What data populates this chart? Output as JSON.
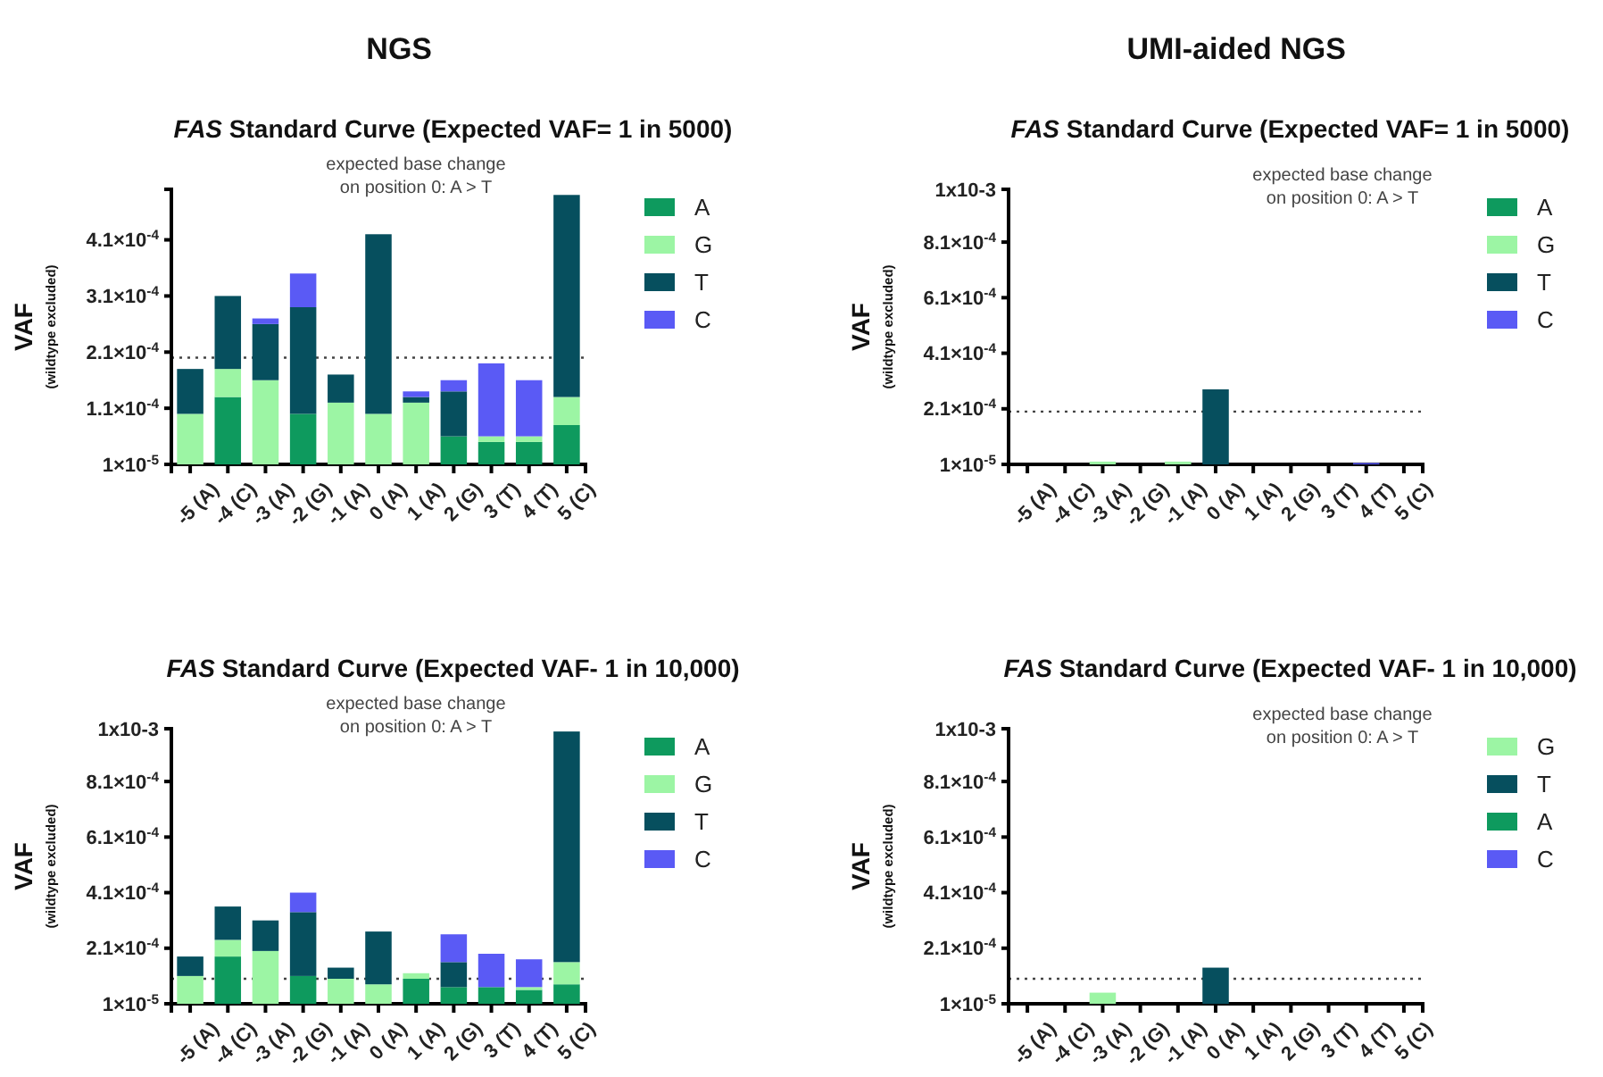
{
  "chart_data": [
    {
      "type": "bar",
      "stacked": true,
      "title": "FAS Standard Curve (Expected VAF= 1 in 5000)",
      "ylabel": "VAF\n(wildtype excluded)",
      "annotations": [
        "NGS",
        "expected base change\non position 0: A > T"
      ],
      "legend": "right",
      "categories": [
        "-5 (A)",
        "-4 (C)",
        "-3 (A)",
        "-2 (G)",
        "-1 (A)",
        "0 (A)",
        "1 (A)",
        "2 (G)",
        "3 (T)",
        "4 (T)",
        "5 (C)"
      ],
      "ylim": [
        1e-05,
        0.0005
      ],
      "yticks": [
        {
          "value": 1e-05,
          "label": "1×10$^{-5}$"
        },
        {
          "value": 0.00011,
          "label": "1.1×10$^{-4}$"
        },
        {
          "value": 0.00021,
          "label": "2.1×10$^{-4}$"
        },
        {
          "value": 0.00031,
          "label": "3.1×10$^{-4}$"
        },
        {
          "value": 0.00041,
          "label": "4.1×10$^{-4}$"
        }
      ],
      "ref_lines": [
        {
          "axis": "y",
          "value": 0.0002,
          "line_style": "dotted"
        }
      ],
      "series": [
        {
          "name": "A",
          "color": "#0e9a5e",
          "values": [
            null,
            0.00013,
            null,
            0.0001,
            null,
            null,
            null,
            6e-05,
            5e-05,
            5e-05,
            8e-05
          ]
        },
        {
          "name": "G",
          "color": "#9cf5a4",
          "values": [
            0.0001,
            5e-05,
            0.00016,
            null,
            0.00012,
            0.0001,
            0.00012,
            null,
            1e-05,
            1e-05,
            5e-05
          ]
        },
        {
          "name": "T",
          "color": "#064f5e",
          "values": [
            8e-05,
            0.00013,
            0.0001,
            0.00019,
            5e-05,
            0.00032,
            1e-05,
            8e-05,
            null,
            null,
            0.00036
          ]
        },
        {
          "name": "C",
          "color": "#5a5af5",
          "values": [
            null,
            null,
            1e-05,
            6e-05,
            null,
            null,
            1e-05,
            2e-05,
            0.00013,
            0.0001,
            null
          ]
        }
      ]
    },
    {
      "type": "bar",
      "stacked": true,
      "title": "FAS Standard Curve (Expected VAF= 1 in 5000)",
      "ylabel": "VAF\n(wildtype excluded)",
      "annotations": [
        "UMI-aided NGS",
        "expected base change\non position 0: A > T"
      ],
      "legend": "right",
      "categories": [
        "-5 (A)",
        "-4 (C)",
        "-3 (A)",
        "-2 (G)",
        "-1 (A)",
        "0 (A)",
        "1 (A)",
        "2 (G)",
        "3 (T)",
        "4 (T)",
        "5 (C)"
      ],
      "ylim": [
        1e-05,
        0.001
      ],
      "yticks": [
        {
          "value": 1e-05,
          "label": "1×10$^{-5}$"
        },
        {
          "value": 0.00021,
          "label": "2.1×10$^{-4}$"
        },
        {
          "value": 0.00041,
          "label": "4.1×10$^{-4}$"
        },
        {
          "value": 0.00061,
          "label": "6.1×10$^{-4}$"
        },
        {
          "value": 0.00081,
          "label": "8.1×10$^{-4}$"
        },
        {
          "value": 0.001,
          "label": "1x10-3"
        }
      ],
      "ref_lines": [
        {
          "axis": "y",
          "value": 0.0002,
          "line_style": "dotted"
        }
      ],
      "series": [
        {
          "name": "A",
          "color": "#0e9a5e",
          "values": [
            null,
            null,
            null,
            null,
            null,
            null,
            null,
            null,
            null,
            null,
            null
          ]
        },
        {
          "name": "G",
          "color": "#9cf5a4",
          "values": [
            null,
            null,
            2e-05,
            null,
            2e-05,
            null,
            null,
            null,
            null,
            null,
            null
          ]
        },
        {
          "name": "T",
          "color": "#064f5e",
          "values": [
            null,
            null,
            null,
            null,
            null,
            0.00028,
            null,
            null,
            null,
            null,
            null
          ]
        },
        {
          "name": "C",
          "color": "#5a5af5",
          "values": [
            null,
            null,
            null,
            null,
            null,
            null,
            null,
            null,
            null,
            1.5e-05,
            null
          ]
        }
      ]
    },
    {
      "type": "bar",
      "stacked": true,
      "title": "FAS Standard Curve (Expected VAF- 1 in 10,000)",
      "ylabel": "VAF\n(wildtype excluded)",
      "annotations": [
        "expected base change\non position 0: A > T"
      ],
      "legend": "right",
      "categories": [
        "-5 (A)",
        "-4 (C)",
        "-3 (A)",
        "-2 (G)",
        "-1 (A)",
        "0 (A)",
        "1 (A)",
        "2 (G)",
        "3 (T)",
        "4 (T)",
        "5 (C)"
      ],
      "ylim": [
        1e-05,
        0.001
      ],
      "yticks": [
        {
          "value": 1e-05,
          "label": "1×10$^{-5}$"
        },
        {
          "value": 0.00021,
          "label": "2.1×10$^{-4}$"
        },
        {
          "value": 0.00041,
          "label": "4.1×10$^{-4}$"
        },
        {
          "value": 0.00061,
          "label": "6.1×10$^{-4}$"
        },
        {
          "value": 0.00081,
          "label": "8.1×10$^{-4}$"
        },
        {
          "value": 0.001,
          "label": "1x10-3"
        }
      ],
      "ref_lines": [
        {
          "axis": "y",
          "value": 0.0001,
          "line_style": "dotted"
        }
      ],
      "series": [
        {
          "name": "A",
          "color": "#0e9a5e",
          "values": [
            null,
            0.00018,
            null,
            0.00011,
            null,
            null,
            0.0001,
            7e-05,
            7e-05,
            6e-05,
            8e-05
          ]
        },
        {
          "name": "G",
          "color": "#9cf5a4",
          "values": [
            0.00011,
            6e-05,
            0.0002,
            null,
            0.0001,
            8e-05,
            2e-05,
            null,
            null,
            1e-05,
            8e-05
          ]
        },
        {
          "name": "T",
          "color": "#064f5e",
          "values": [
            7e-05,
            0.00012,
            0.00011,
            0.00023,
            4e-05,
            0.00019,
            null,
            9e-05,
            null,
            null,
            0.00083
          ]
        },
        {
          "name": "C",
          "color": "#5a5af5",
          "values": [
            null,
            null,
            null,
            7e-05,
            null,
            null,
            null,
            0.0001,
            0.00012,
            0.0001,
            null
          ]
        }
      ]
    },
    {
      "type": "bar",
      "stacked": true,
      "title": "FAS Standard Curve (Expected VAF- 1 in 10,000)",
      "ylabel": "VAF\n(wildtype excluded)",
      "annotations": [
        "expected base change\non position 0: A > T"
      ],
      "legend": "right",
      "categories": [
        "-5 (A)",
        "-4 (C)",
        "-3 (A)",
        "-2 (G)",
        "-1 (A)",
        "0 (A)",
        "1 (A)",
        "2 (G)",
        "3 (T)",
        "4 (T)",
        "5 (C)"
      ],
      "ylim": [
        1e-05,
        0.001
      ],
      "yticks": [
        {
          "value": 1e-05,
          "label": "1×10$^{-5}$"
        },
        {
          "value": 0.00021,
          "label": "2.1×10$^{-4}$"
        },
        {
          "value": 0.00041,
          "label": "4.1×10$^{-4}$"
        },
        {
          "value": 0.00061,
          "label": "6.1×10$^{-4}$"
        },
        {
          "value": 0.00081,
          "label": "8.1×10$^{-4}$"
        },
        {
          "value": 0.001,
          "label": "1x10-3"
        }
      ],
      "ref_lines": [
        {
          "axis": "y",
          "value": 0.0001,
          "line_style": "dotted"
        }
      ],
      "series": [
        {
          "name": "G",
          "color": "#9cf5a4",
          "values": [
            null,
            null,
            5e-05,
            null,
            null,
            null,
            null,
            null,
            null,
            null,
            null
          ]
        },
        {
          "name": "T",
          "color": "#064f5e",
          "values": [
            null,
            null,
            null,
            null,
            null,
            0.00014,
            null,
            null,
            null,
            null,
            null
          ]
        },
        {
          "name": "A",
          "color": "#0e9a5e",
          "values": [
            null,
            null,
            null,
            null,
            null,
            null,
            null,
            null,
            null,
            null,
            null
          ]
        },
        {
          "name": "C",
          "color": "#5a5af5",
          "values": [
            null,
            null,
            null,
            null,
            null,
            null,
            null,
            null,
            null,
            null,
            null
          ]
        }
      ]
    }
  ]
}
